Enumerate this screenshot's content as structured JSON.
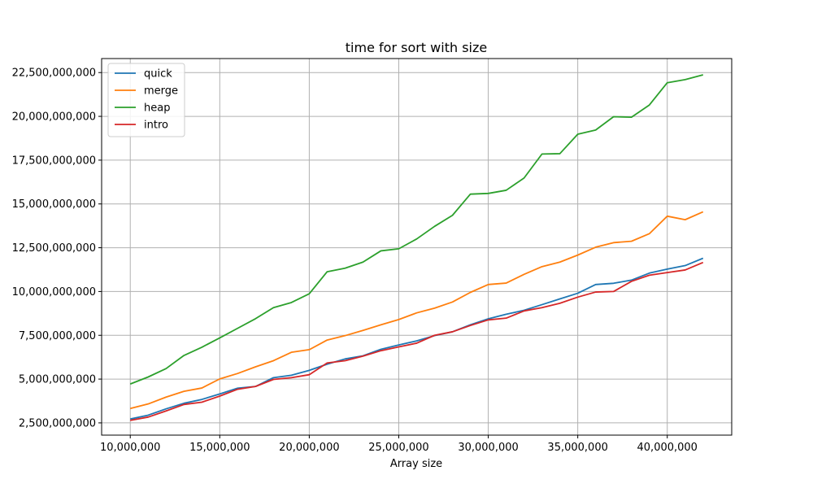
{
  "chart_data": {
    "type": "line",
    "title": "time for sort with size",
    "xlabel": "Array size",
    "ylabel": "",
    "xlim": [
      8400000,
      43600000
    ],
    "ylim": [
      1800000000,
      23300000000
    ],
    "grid": true,
    "legend_position": "top-left",
    "x_ticks": [
      10000000,
      15000000,
      20000000,
      25000000,
      30000000,
      35000000,
      40000000
    ],
    "x_tick_labels": [
      "10,000,000",
      "15,000,000",
      "20,000,000",
      "25,000,000",
      "30,000,000",
      "35,000,000",
      "40,000,000"
    ],
    "y_ticks": [
      2500000000,
      5000000000,
      7500000000,
      10000000000,
      12500000000,
      15000000000,
      17500000000,
      20000000000,
      22500000000
    ],
    "y_tick_labels": [
      "2,500,000,000",
      "5,000,000,000",
      "7,500,000,000",
      "10,000,000,000",
      "12,500,000,000",
      "15,000,000,000",
      "17,500,000,000",
      "20,000,000,000",
      "22,500,000,000"
    ],
    "x": [
      10000000,
      11000000,
      12000000,
      13000000,
      14000000,
      15000000,
      16000000,
      17000000,
      18000000,
      19000000,
      20000000,
      21000000,
      22000000,
      23000000,
      24000000,
      25000000,
      26000000,
      27000000,
      28000000,
      29000000,
      30000000,
      31000000,
      32000000,
      33000000,
      34000000,
      35000000,
      36000000,
      37000000,
      38000000,
      39000000,
      40000000,
      41000000,
      42000000
    ],
    "series": [
      {
        "name": "quick",
        "color": "#1f77b4",
        "values": [
          2720000000,
          2940000000,
          3300000000,
          3620000000,
          3840000000,
          4150000000,
          4480000000,
          4580000000,
          5080000000,
          5220000000,
          5500000000,
          5850000000,
          6150000000,
          6330000000,
          6700000000,
          6950000000,
          7180000000,
          7480000000,
          7700000000,
          8100000000,
          8440000000,
          8700000000,
          8930000000,
          9250000000,
          9580000000,
          9900000000,
          10400000000,
          10470000000,
          10650000000,
          11050000000,
          11280000000,
          11480000000,
          11900000000
        ]
      },
      {
        "name": "merge",
        "color": "#ff7f0e",
        "values": [
          3320000000,
          3580000000,
          3970000000,
          4300000000,
          4490000000,
          5010000000,
          5320000000,
          5700000000,
          6050000000,
          6530000000,
          6680000000,
          7230000000,
          7480000000,
          7780000000,
          8100000000,
          8400000000,
          8780000000,
          9050000000,
          9400000000,
          9950000000,
          10400000000,
          10480000000,
          10980000000,
          11420000000,
          11680000000,
          12080000000,
          12530000000,
          12790000000,
          12870000000,
          13300000000,
          14300000000,
          14100000000,
          14550000000
        ]
      },
      {
        "name": "heap",
        "color": "#2ca02c",
        "values": [
          4720000000,
          5120000000,
          5600000000,
          6350000000,
          6820000000,
          7350000000,
          7900000000,
          8450000000,
          9080000000,
          9370000000,
          9870000000,
          11130000000,
          11330000000,
          11680000000,
          12320000000,
          12440000000,
          13000000000,
          13720000000,
          14350000000,
          15560000000,
          15600000000,
          15780000000,
          16480000000,
          17850000000,
          17870000000,
          18980000000,
          19220000000,
          19980000000,
          19950000000,
          20650000000,
          21920000000,
          22100000000,
          22370000000
        ]
      },
      {
        "name": "intro",
        "color": "#d62728",
        "values": [
          2640000000,
          2830000000,
          3180000000,
          3550000000,
          3680000000,
          4030000000,
          4420000000,
          4580000000,
          4980000000,
          5080000000,
          5250000000,
          5920000000,
          6050000000,
          6310000000,
          6620000000,
          6840000000,
          7050000000,
          7500000000,
          7700000000,
          8060000000,
          8380000000,
          8480000000,
          8890000000,
          9080000000,
          9330000000,
          9680000000,
          9970000000,
          10000000000,
          10580000000,
          10930000000,
          11080000000,
          11230000000,
          11660000000
        ]
      }
    ]
  }
}
